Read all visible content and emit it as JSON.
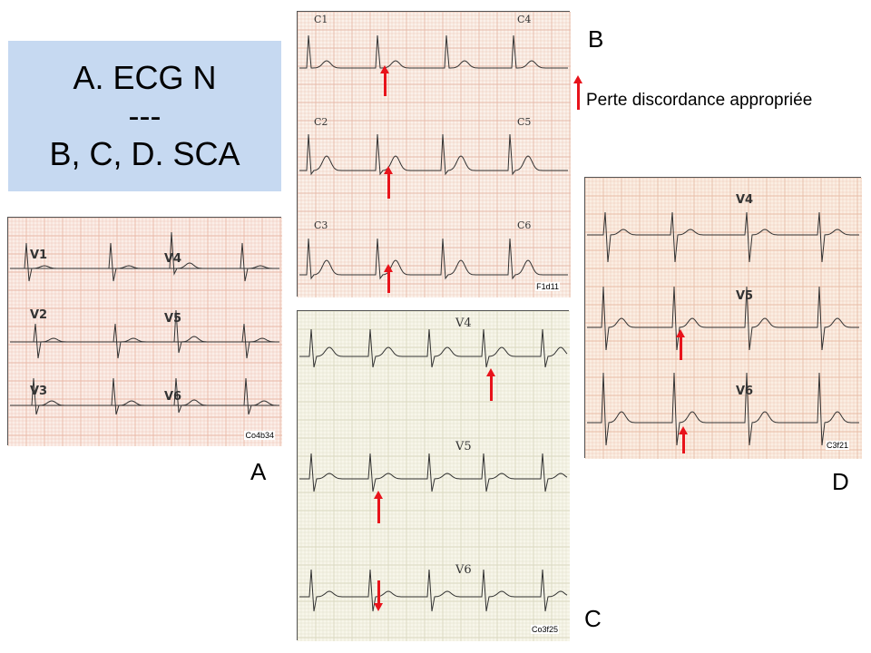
{
  "title_box": {
    "line1": "A. ECG N",
    "line2": "---",
    "line3": "B, C, D. SCA"
  },
  "legend": {
    "text": "Perte discordance appropriée",
    "arrow_color": "#e8131b"
  },
  "panels": {
    "A": {
      "letter": "A",
      "code": "Co4b34",
      "leads": [
        "V1",
        "V2",
        "V3",
        "V4",
        "V5",
        "V6"
      ],
      "grid_color": "#e9b7a6",
      "background": "#fbeee8"
    },
    "B": {
      "letter": "B",
      "code": "F1d11",
      "leads": [
        "C1",
        "C2",
        "C3",
        "C4",
        "C5",
        "C6"
      ],
      "grid_color": "#e6b9a8",
      "background": "#fbf1ea"
    },
    "C": {
      "letter": "C",
      "code": "Co3f25",
      "leads": [
        "V4",
        "V5",
        "V6"
      ],
      "grid_color": "#d9d7bf",
      "background": "#f7f6ea"
    },
    "D": {
      "letter": "D",
      "code": "C3f21",
      "leads": [
        "V4",
        "V5",
        "V6"
      ],
      "grid_color": "#e8bca6",
      "background": "#fbeee3"
    }
  }
}
